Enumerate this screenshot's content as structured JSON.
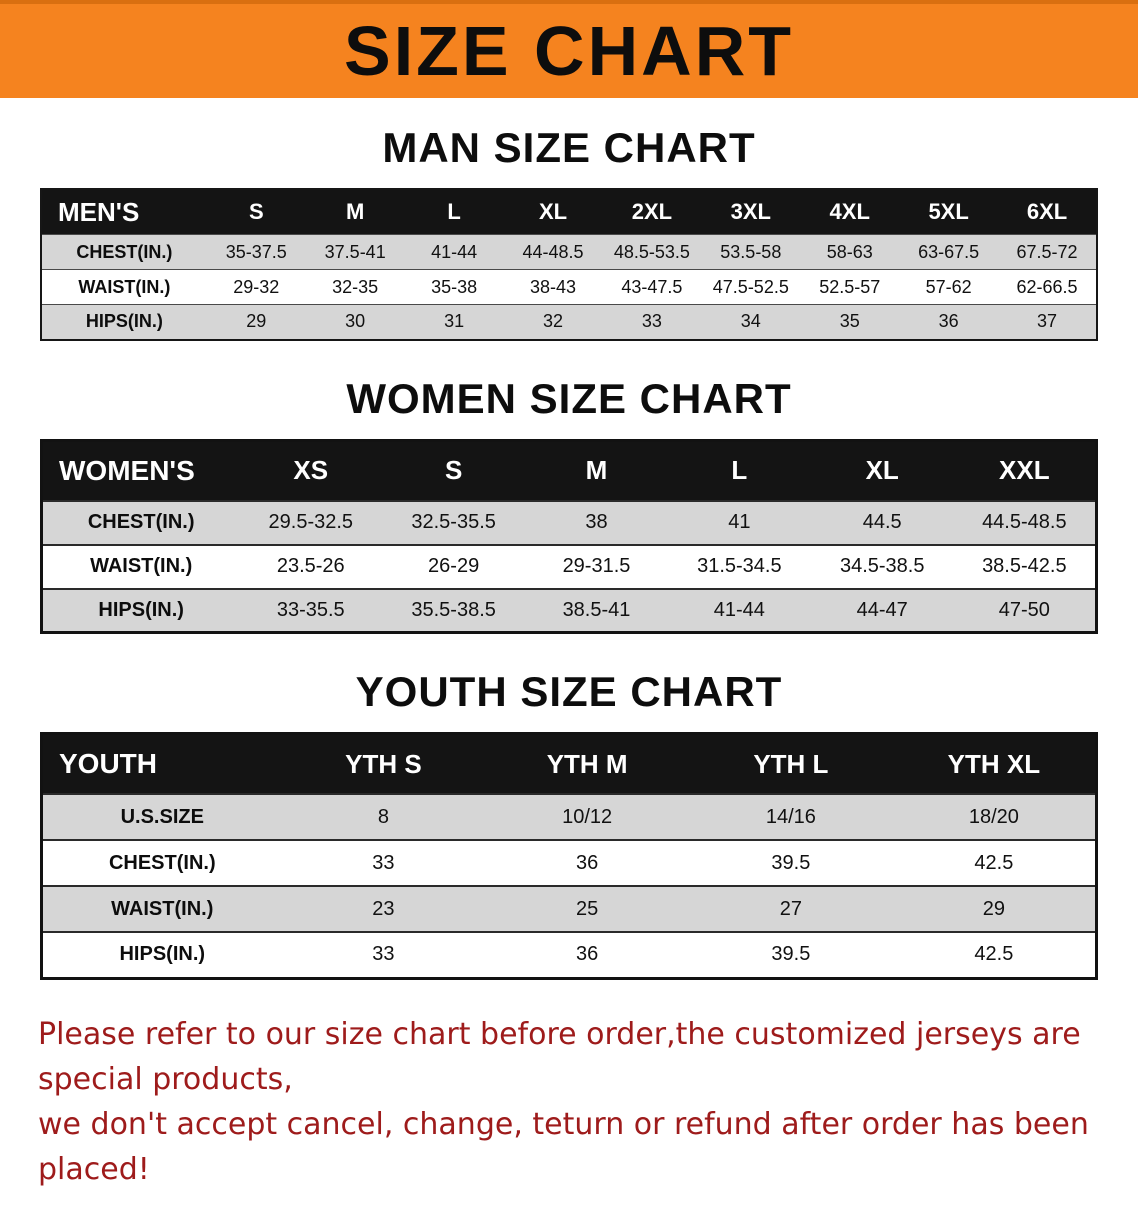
{
  "banner": {
    "title": "SIZE CHART",
    "bg_color": "#f5831f",
    "text_color": "#0d0d0d"
  },
  "sections": [
    {
      "heading": "MAN SIZE CHART",
      "table": {
        "header": [
          "MEN'S",
          "S",
          "M",
          "L",
          "XL",
          "2XL",
          "3XL",
          "4XL",
          "5XL",
          "6XL"
        ],
        "rows": [
          [
            "CHEST(IN.)",
            "35-37.5",
            "37.5-41",
            "41-44",
            "44-48.5",
            "48.5-53.5",
            "53.5-58",
            "58-63",
            "63-67.5",
            "67.5-72"
          ],
          [
            "WAIST(IN.)",
            "29-32",
            "32-35",
            "35-38",
            "38-43",
            "43-47.5",
            "47.5-52.5",
            "52.5-57",
            "57-62",
            "62-66.5"
          ],
          [
            "HIPS(IN.)",
            "29",
            "30",
            "31",
            "32",
            "33",
            "34",
            "35",
            "36",
            "37"
          ]
        ]
      }
    },
    {
      "heading": "WOMEN SIZE CHART",
      "table": {
        "header": [
          "WOMEN'S",
          "XS",
          "S",
          "M",
          "L",
          "XL",
          "XXL"
        ],
        "rows": [
          [
            "CHEST(IN.)",
            "29.5-32.5",
            "32.5-35.5",
            "38",
            "41",
            "44.5",
            "44.5-48.5"
          ],
          [
            "WAIST(IN.)",
            "23.5-26",
            "26-29",
            "29-31.5",
            "31.5-34.5",
            "34.5-38.5",
            "38.5-42.5"
          ],
          [
            "HIPS(IN.)",
            "33-35.5",
            "35.5-38.5",
            "38.5-41",
            "41-44",
            "44-47",
            "47-50"
          ]
        ]
      }
    },
    {
      "heading": "YOUTH SIZE CHART",
      "table": {
        "header": [
          "YOUTH",
          "YTH S",
          "YTH M",
          "YTH L",
          "YTH XL"
        ],
        "rows": [
          [
            "U.S.SIZE",
            "8",
            "10/12",
            "14/16",
            "18/20"
          ],
          [
            "CHEST(IN.)",
            "33",
            "36",
            "39.5",
            "42.5"
          ],
          [
            "WAIST(IN.)",
            "23",
            "25",
            "27",
            "29"
          ],
          [
            "HIPS(IN.)",
            "33",
            "36",
            "39.5",
            "42.5"
          ]
        ]
      }
    }
  ],
  "disclaimer": {
    "line1": "Please refer to our size chart before order,the customized jerseys are special products,",
    "line2": "we don't accept cancel, change, teturn or refund after order has been placed!",
    "text_color": "#9e1b1b"
  }
}
